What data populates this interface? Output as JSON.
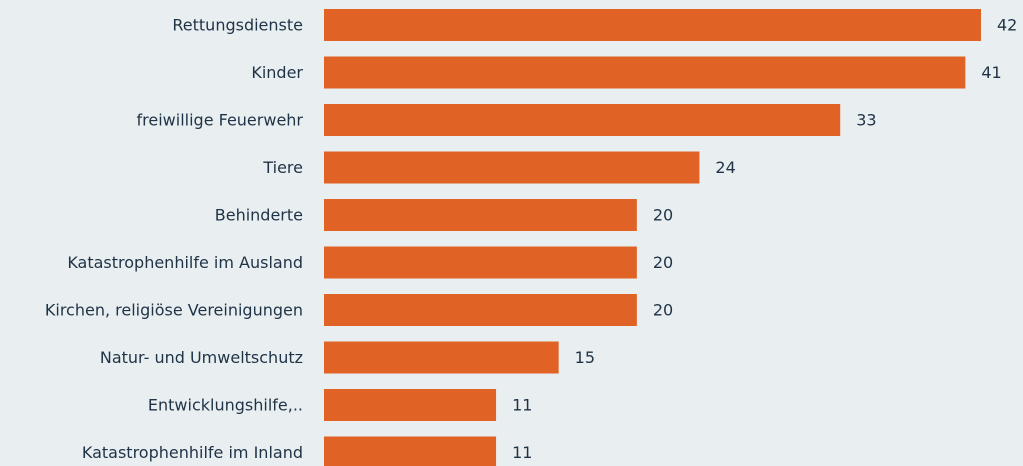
{
  "chart_data": {
    "type": "bar",
    "orientation": "horizontal",
    "categories": [
      "Rettungsdienste",
      "Kinder",
      "freiwillige Feuerwehr",
      "Tiere",
      "Behinderte",
      "Katastrophenhilfe im Ausland",
      "Kirchen, religiöse Vereinigungen",
      "Natur- und Umweltschutz",
      "Entwicklungshilfe,..",
      "Katastrophenhilfe im Inland"
    ],
    "values": [
      42,
      41,
      33,
      24,
      20,
      20,
      20,
      15,
      11,
      11
    ],
    "title": "",
    "xlabel": "",
    "ylabel": "",
    "xlim": [
      0,
      42
    ],
    "grid": false,
    "legend": "none",
    "bar_color": "#e06224",
    "text_color": "#1f3347",
    "background_color": "#e9eef0"
  }
}
